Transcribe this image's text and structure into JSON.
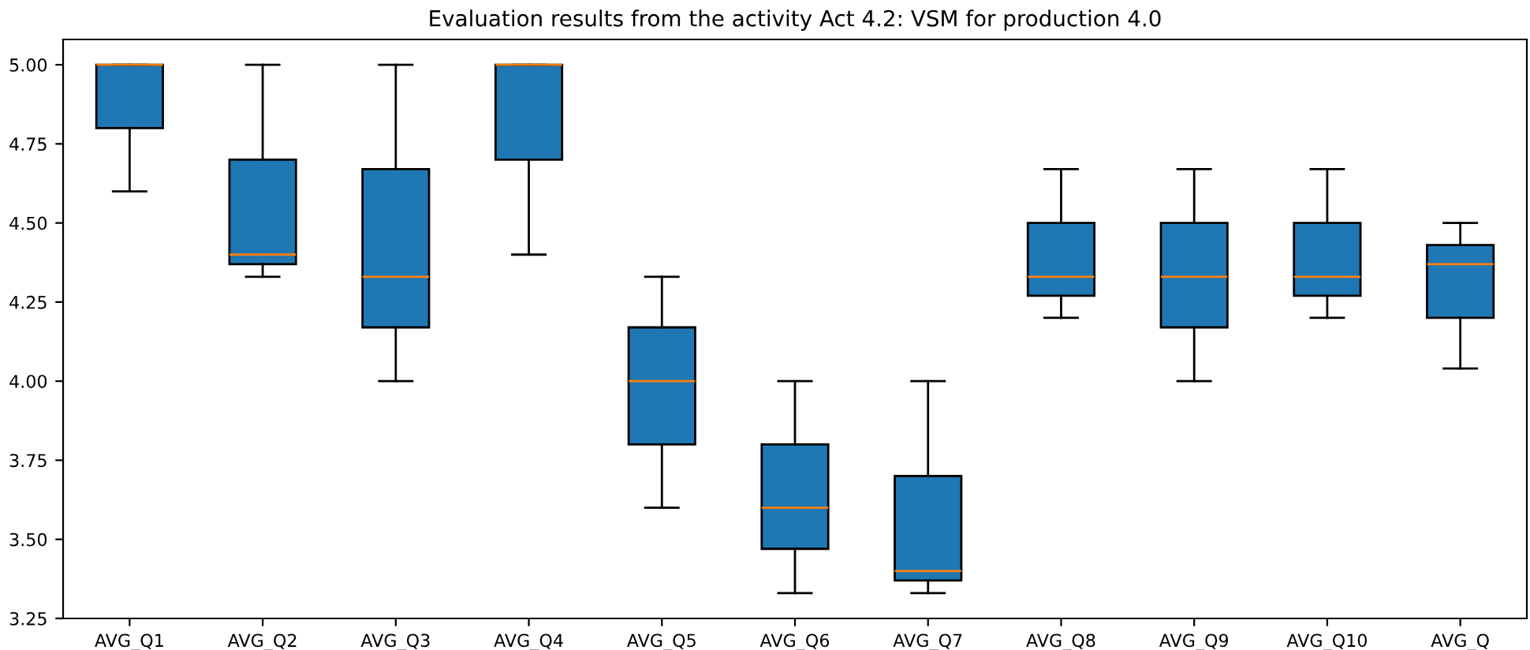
{
  "chart_data": {
    "type": "box",
    "title": "Evaluation results from the activity Act 4.2: VSM for production 4.0",
    "categories": [
      "AVG_Q1",
      "AVG_Q2",
      "AVG_Q3",
      "AVG_Q4",
      "AVG_Q5",
      "AVG_Q6",
      "AVG_Q7",
      "AVG_Q8",
      "AVG_Q9",
      "AVG_Q10",
      "AVG_Q"
    ],
    "color": "#1f77b4",
    "boxes": [
      {
        "low": 4.6,
        "q1": 4.8,
        "median": 5.0,
        "q3": 5.0,
        "high": 5.0
      },
      {
        "low": 4.33,
        "q1": 4.37,
        "median": 4.4,
        "q3": 4.7,
        "high": 5.0
      },
      {
        "low": 4.0,
        "q1": 4.17,
        "median": 4.33,
        "q3": 4.67,
        "high": 5.0
      },
      {
        "low": 4.4,
        "q1": 4.7,
        "median": 5.0,
        "q3": 5.0,
        "high": 5.0
      },
      {
        "low": 3.6,
        "q1": 3.8,
        "median": 4.0,
        "q3": 4.17,
        "high": 4.33
      },
      {
        "low": 3.33,
        "q1": 3.47,
        "median": 3.6,
        "q3": 3.8,
        "high": 4.0
      },
      {
        "low": 3.33,
        "q1": 3.37,
        "median": 3.4,
        "q3": 3.7,
        "high": 4.0
      },
      {
        "low": 4.2,
        "q1": 4.27,
        "median": 4.33,
        "q3": 4.5,
        "high": 4.67
      },
      {
        "low": 4.0,
        "q1": 4.17,
        "median": 4.33,
        "q3": 4.5,
        "high": 4.67
      },
      {
        "low": 4.2,
        "q1": 4.27,
        "median": 4.33,
        "q3": 4.5,
        "high": 4.67
      },
      {
        "low": 4.04,
        "q1": 4.2,
        "median": 4.37,
        "q3": 4.43,
        "high": 4.5
      }
    ],
    "ylim": [
      3.25,
      5.08
    ],
    "yticks": [
      {
        "value": 3.25,
        "label": "3.25"
      },
      {
        "value": 3.5,
        "label": "3.50"
      },
      {
        "value": 3.75,
        "label": "3.75"
      },
      {
        "value": 4.0,
        "label": "4.00"
      },
      {
        "value": 4.25,
        "label": "4.25"
      },
      {
        "value": 4.5,
        "label": "4.50"
      },
      {
        "value": 4.75,
        "label": "4.75"
      },
      {
        "value": 5.0,
        "label": "5.00"
      }
    ],
    "grid": false
  }
}
